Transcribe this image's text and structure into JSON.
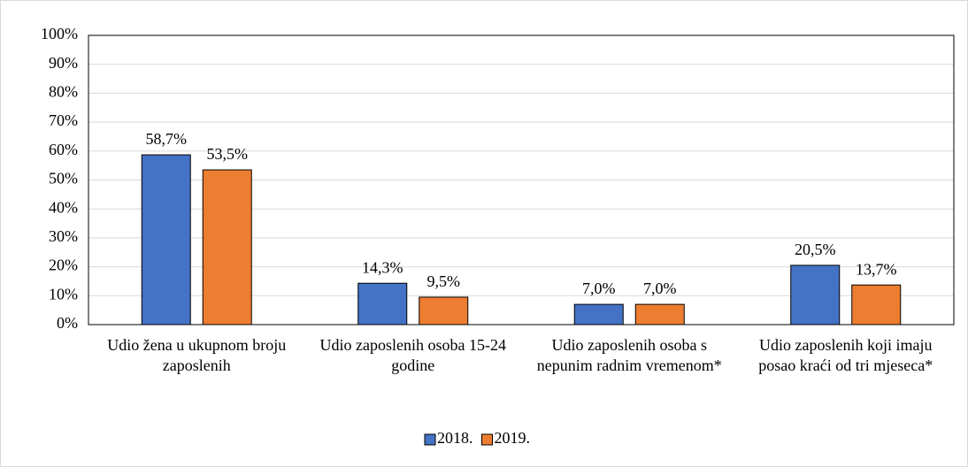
{
  "chart_data": {
    "type": "bar",
    "categories": [
      "Udio žena u ukupnom broju zaposlenih",
      "Udio zaposlenih osoba 15-24 godine",
      "Udio zaposlenih osoba s nepunim radnim vremenom*",
      "Udio zaposlenih koji imaju posao kraći od tri mjeseca*"
    ],
    "series": [
      {
        "name": "2018.",
        "color": "#4472c4",
        "values": [
          58.7,
          14.3,
          7.0,
          20.5
        ],
        "value_labels": [
          "58,7%",
          "14,3%",
          "7,0%",
          "20,5%"
        ]
      },
      {
        "name": "2019.",
        "color": "#ed7d31",
        "values": [
          53.5,
          9.5,
          7.0,
          13.7
        ],
        "value_labels": [
          "53,5%",
          "9,5%",
          "7,0%",
          "13,7%"
        ]
      }
    ],
    "ylim": [
      0,
      100
    ],
    "yticks": [
      {
        "value": 0,
        "label": "0%"
      },
      {
        "value": 10,
        "label": "10%"
      },
      {
        "value": 20,
        "label": "20%"
      },
      {
        "value": 30,
        "label": "30%"
      },
      {
        "value": 40,
        "label": "40%"
      },
      {
        "value": 50,
        "label": "50%"
      },
      {
        "value": 60,
        "label": "60%"
      },
      {
        "value": 70,
        "label": "70%"
      },
      {
        "value": 80,
        "label": "80%"
      },
      {
        "value": 90,
        "label": "90%"
      },
      {
        "value": 100,
        "label": "100%"
      }
    ],
    "grid": true,
    "legend": "bottom"
  }
}
